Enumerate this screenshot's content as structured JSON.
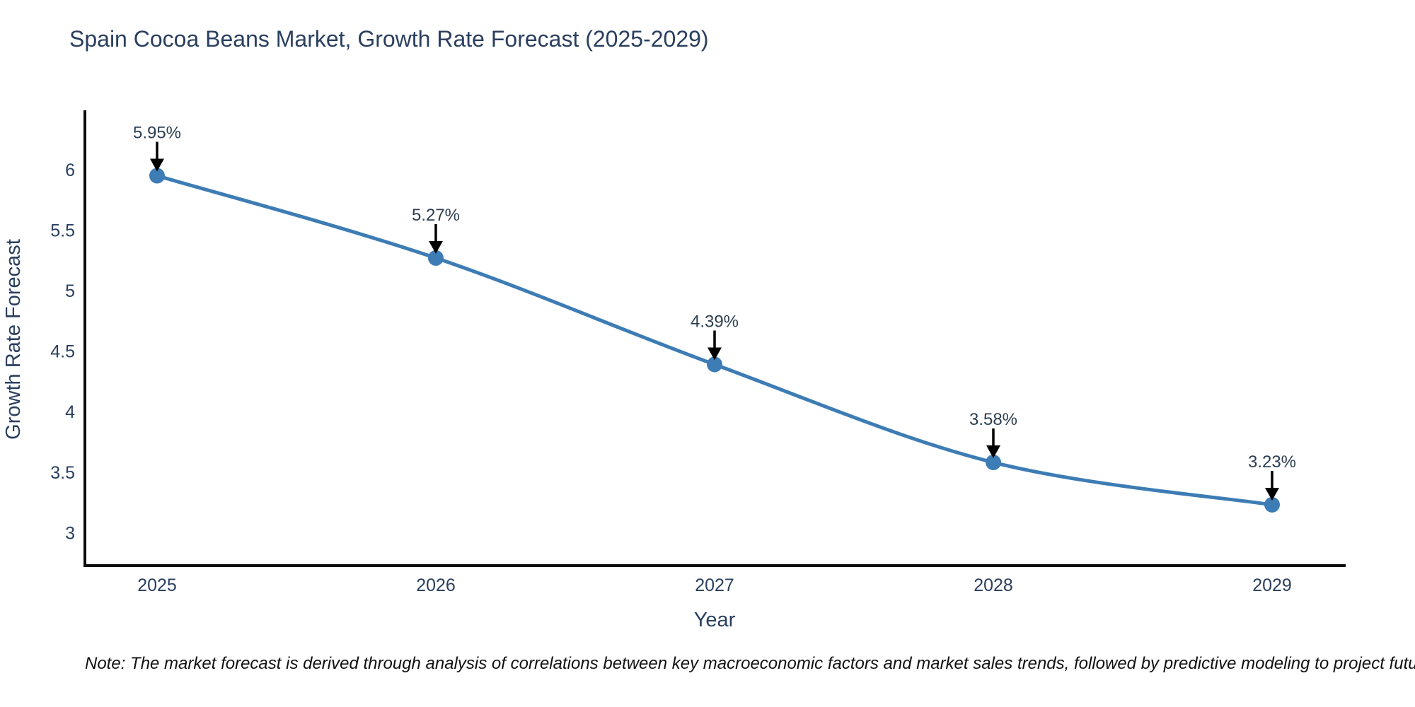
{
  "title": "Spain Cocoa Beans Market, Growth Rate Forecast (2025-2029)",
  "note": "Note: The market forecast is derived through analysis of correlations between key macroeconomic factors and market sales trends, followed by predictive modeling to project future sales",
  "chart_data": {
    "type": "line",
    "title": "Spain Cocoa Beans Market, Growth Rate Forecast (2025-2029)",
    "xlabel": "Year",
    "ylabel": "Growth Rate Forecast",
    "categories": [
      "2025",
      "2026",
      "2027",
      "2028",
      "2029"
    ],
    "series": [
      {
        "name": "Growth Rate Forecast",
        "values": [
          5.95,
          5.27,
          4.39,
          3.58,
          3.23
        ],
        "point_labels": [
          "5.95%",
          "5.27%",
          "4.39%",
          "3.58%",
          "3.23%"
        ]
      }
    ],
    "ytick_values": [
      3,
      3.5,
      4,
      4.5,
      5,
      5.5,
      6
    ],
    "ytick_labels": [
      "3",
      "3.5",
      "4",
      "4.5",
      "5",
      "5.5",
      "6"
    ],
    "ylim": [
      2.7,
      6.5
    ],
    "grid": false,
    "legend_position": "none",
    "line_style": "spline",
    "marker_style": "circle",
    "annotation_style": "down-arrow",
    "colors": {
      "line": "#3d7cb4",
      "marker": "#3d7cb4",
      "axis": "#0d0d0d",
      "arrow": "#000000",
      "tick_text": "#2a3f5f",
      "title_text": "#2a3f5f",
      "note_text": "#111111",
      "background": "#ffffff"
    }
  }
}
